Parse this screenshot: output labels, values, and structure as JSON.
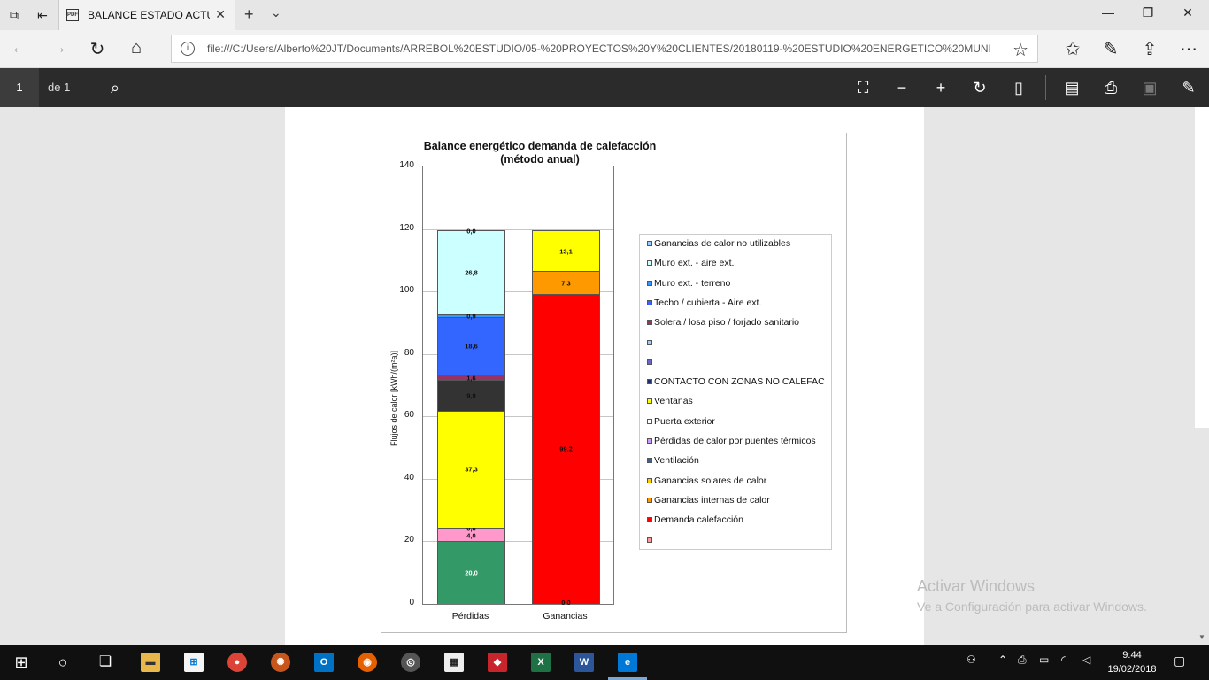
{
  "browser": {
    "tab_title": "BALANCE ESTADO ACTU",
    "address": "file:///C:/Users/Alberto%20JT/Documents/ARREBOL%20ESTUDIO/05-%20PROYECTOS%20Y%20CLIENTES/20180119-%20ESTUDIO%20ENERGETICO%20MUNI"
  },
  "pdf_toolbar": {
    "page_current": "1",
    "page_total": "de 1"
  },
  "chart_data": {
    "type": "bar",
    "stacked": true,
    "title": "Balance energético demanda de calefacción",
    "subtitle": "(método anual)",
    "ylabel": "Flujos de calor [kWh/(m²a)]",
    "xlabel": "",
    "ylim": [
      0,
      140
    ],
    "yticks": [
      "0",
      "20",
      "40",
      "60",
      "80",
      "100",
      "120",
      "140"
    ],
    "grid": true,
    "legend_position": "right",
    "categories": [
      "Pérdidas",
      "Ganancias"
    ],
    "series": [
      {
        "name": "Ventilación",
        "color": "#339966",
        "values": [
          20.0,
          0
        ],
        "labels": [
          "20,0",
          ""
        ]
      },
      {
        "name": "Pérdidas de calor por puentes térmicos",
        "color": "#ff99cc",
        "values": [
          4.0,
          0
        ],
        "labels": [
          "4,0",
          ""
        ]
      },
      {
        "name": "Puerta exterior",
        "color": "#ccccff",
        "values": [
          0.5,
          0
        ],
        "labels": [
          "0,5",
          ""
        ]
      },
      {
        "name": "Ventanas",
        "color": "#ffff00",
        "values": [
          37.3,
          0
        ],
        "labels": [
          "37,3",
          ""
        ]
      },
      {
        "name": "CONTACTO CON ZONAS NO CALEFAC",
        "color": "#333333",
        "values": [
          9.9,
          0
        ],
        "labels": [
          "9,9",
          ""
        ]
      },
      {
        "name": "Solera / losa piso / forjado sanitario",
        "color": "#993366",
        "values": [
          1.6,
          0
        ],
        "labels": [
          "1,6",
          ""
        ]
      },
      {
        "name": "Techo / cubierta - Aire ext.",
        "color": "#3366ff",
        "values": [
          18.6,
          0
        ],
        "labels": [
          "18,6",
          ""
        ]
      },
      {
        "name": "Muro ext. - terreno",
        "color": "#3399ff",
        "values": [
          0.9,
          0
        ],
        "labels": [
          "0,9",
          ""
        ]
      },
      {
        "name": "Muro ext. - aire ext.",
        "color": "#ccffff",
        "values": [
          26.8,
          0
        ],
        "labels": [
          "26,8",
          ""
        ]
      },
      {
        "name": "Ganancias de calor no utilizables",
        "color": "#99ccff",
        "values": [
          0.0,
          0
        ],
        "labels": [
          "0,0",
          ""
        ]
      },
      {
        "name": "Demanda calefacción",
        "color": "#ff0000",
        "values": [
          0,
          99.2
        ],
        "labels": [
          "",
          "99,2"
        ]
      },
      {
        "name": "Ganancias internas de calor",
        "color": "#ff9900",
        "values": [
          0,
          7.3
        ],
        "labels": [
          "",
          "7,3"
        ]
      },
      {
        "name": "Ganancias solares de calor",
        "color": "#ffff00",
        "values": [
          0,
          13.1
        ],
        "labels": [
          "",
          "13,1"
        ]
      }
    ],
    "extra_labels": [
      {
        "category": "Ganancias",
        "value": 0.0,
        "label": "0,0"
      }
    ],
    "legend": [
      {
        "name": "Ganancias de calor no utilizables",
        "color": "#99ccff"
      },
      {
        "name": "Muro ext. - aire ext.",
        "color": "#ccffff"
      },
      {
        "name": "Muro ext. - terreno",
        "color": "#3399ff"
      },
      {
        "name": "Techo / cubierta - Aire ext.",
        "color": "#3366ff"
      },
      {
        "name": "Solera / losa piso / forjado sanitario",
        "color": "#993366"
      },
      {
        "name": "",
        "color": "#99ccff"
      },
      {
        "name": "",
        "color": "#6666cc"
      },
      {
        "name": "CONTACTO CON ZONAS NO CALEFAC",
        "color": "#1f2f6f"
      },
      {
        "name": "Ventanas",
        "color": "#ffff00"
      },
      {
        "name": "Puerta exterior",
        "color": "#ffffff"
      },
      {
        "name": "Pérdidas de calor por puentes térmicos",
        "color": "#cc99ff"
      },
      {
        "name": "Ventilación",
        "color": "#336699"
      },
      {
        "name": "Ganancias solares de calor",
        "color": "#ffcc00"
      },
      {
        "name": "Ganancias internas de calor",
        "color": "#ff9900"
      },
      {
        "name": "Demanda calefacción",
        "color": "#ff0000"
      },
      {
        "name": "",
        "color": "#ff9999"
      }
    ]
  },
  "watermark": {
    "line1": "Activar Windows",
    "line2": "Ve a Configuración para activar Windows."
  },
  "taskbar": {
    "time": "9:44",
    "date": "19/02/2018"
  }
}
